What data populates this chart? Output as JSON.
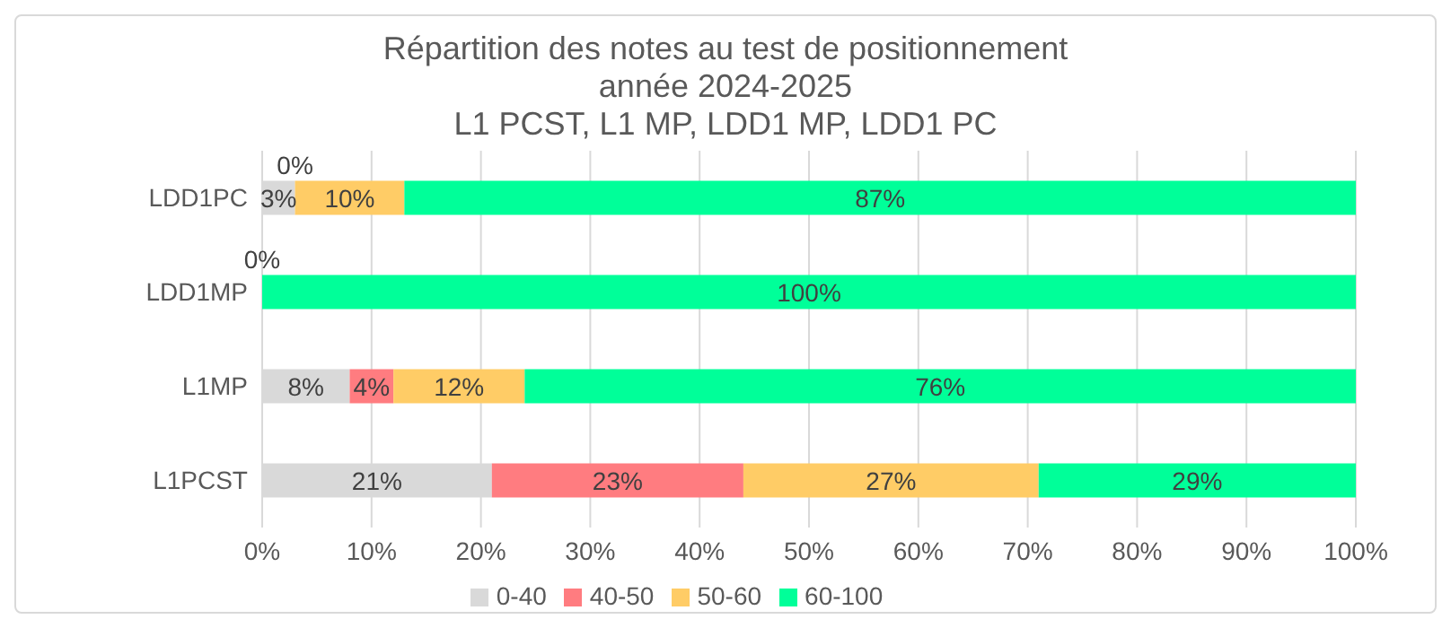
{
  "chart_data": {
    "type": "bar",
    "orientation": "horizontal",
    "stacked": true,
    "title": "Répartition des notes au test de positionnement\nannée 2024-2025\nL1 PCST, L1 MP, LDD1 MP, LDD1 PC",
    "categories": [
      "LDD1PC",
      "LDD1MP",
      "L1MP",
      "L1PCST"
    ],
    "series": [
      {
        "name": "0-40",
        "color": "#d9d9d9",
        "values": [
          3,
          0,
          8,
          21
        ],
        "value_labels": [
          "3%",
          "0%",
          "8%",
          "21%"
        ]
      },
      {
        "name": "40-50",
        "color": "#ff7c80",
        "values": [
          0,
          0,
          4,
          23
        ],
        "value_labels": [
          "0%",
          null,
          "4%",
          "23%"
        ]
      },
      {
        "name": "50-60",
        "color": "#ffcc66",
        "values": [
          10,
          0,
          12,
          27
        ],
        "value_labels": [
          "10%",
          null,
          "12%",
          "27%"
        ]
      },
      {
        "name": "60-100",
        "color": "#00ff99",
        "values": [
          87,
          100,
          76,
          29
        ],
        "value_labels": [
          "87%",
          "100%",
          "76%",
          "29%"
        ]
      }
    ],
    "xlim": [
      0,
      100
    ],
    "xticks": [
      {
        "value": 0,
        "label": "0%"
      },
      {
        "value": 10,
        "label": "10%"
      },
      {
        "value": 20,
        "label": "20%"
      },
      {
        "value": 30,
        "label": "30%"
      },
      {
        "value": 40,
        "label": "40%"
      },
      {
        "value": 50,
        "label": "50%"
      },
      {
        "value": 60,
        "label": "60%"
      },
      {
        "value": 70,
        "label": "70%"
      },
      {
        "value": 80,
        "label": "80%"
      },
      {
        "value": 90,
        "label": "90%"
      },
      {
        "value": 100,
        "label": "100%"
      }
    ],
    "grid": "x",
    "legend": "bottom"
  }
}
